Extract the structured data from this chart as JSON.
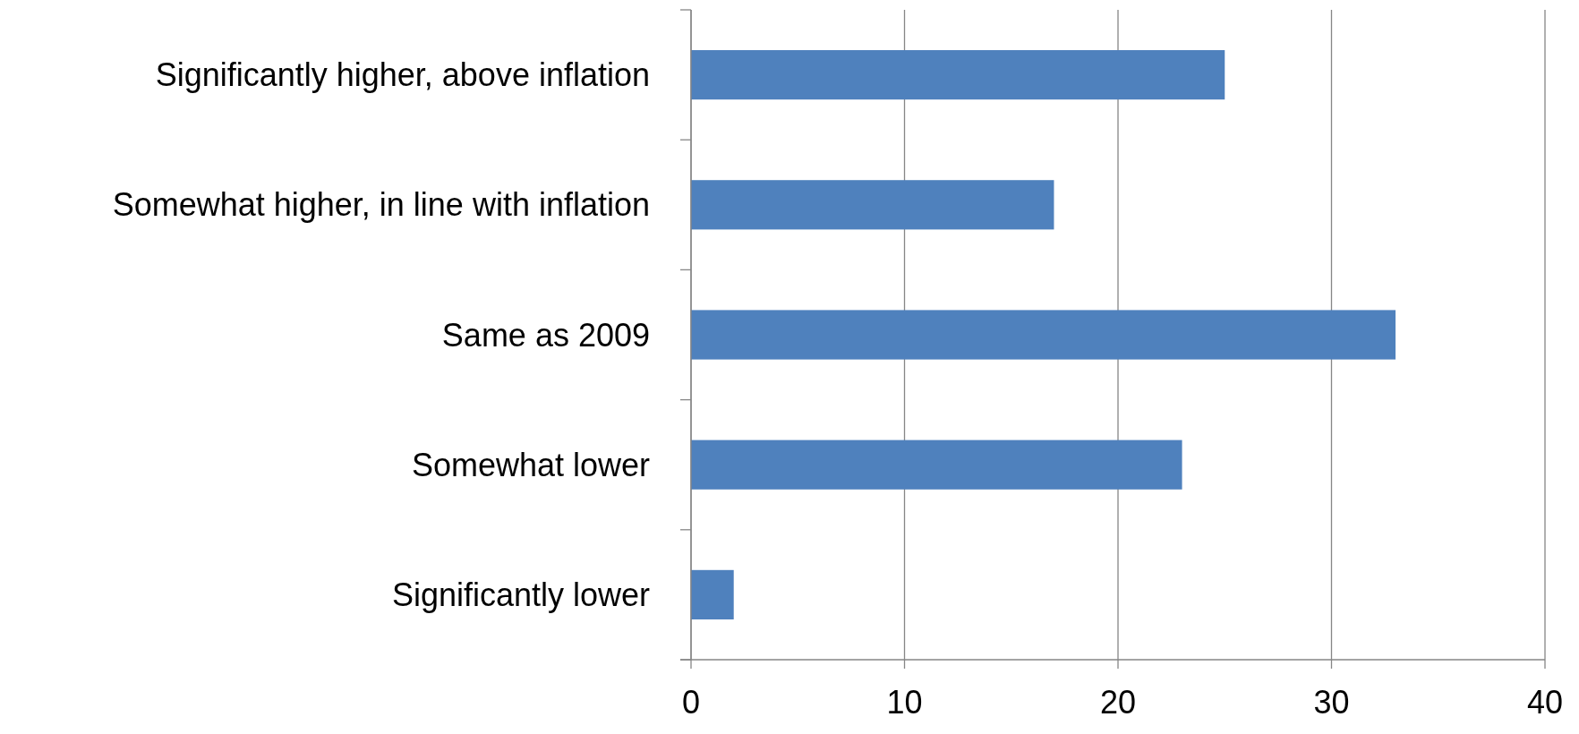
{
  "chart_data": {
    "type": "bar",
    "orientation": "horizontal",
    "categories": [
      "Significantly higher, above inflation",
      "Somewhat higher, in line with inflation",
      "Same as 2009",
      "Somewhat lower",
      "Significantly lower"
    ],
    "values": [
      25,
      17,
      33,
      23,
      2
    ],
    "color": "#4f81bd",
    "xlim": [
      0,
      40
    ],
    "xticks": [
      0,
      10,
      20,
      30,
      40
    ],
    "grid": "x"
  }
}
